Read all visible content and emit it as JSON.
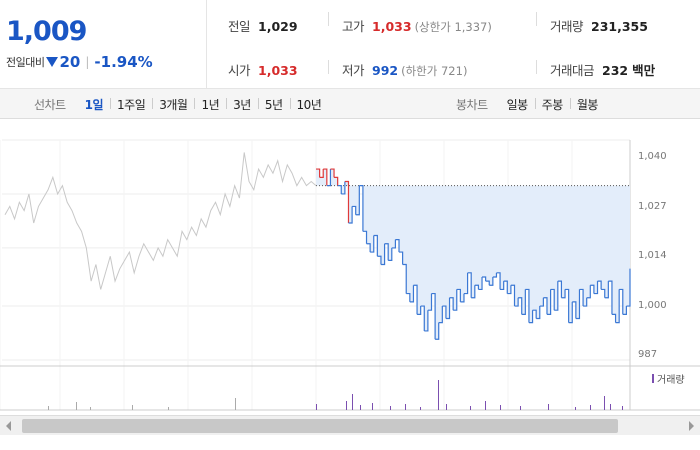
{
  "current": {
    "price": "1,009",
    "change_label": "전일대비",
    "change_value": "20",
    "change_percent": "-1.94%"
  },
  "stats": {
    "prev_close": {
      "label": "전일",
      "value": "1,029"
    },
    "high": {
      "label": "고가",
      "value": "1,033",
      "limit": "(상한가 1,337)"
    },
    "volume": {
      "label": "거래량",
      "value": "231,355"
    },
    "open": {
      "label": "시가",
      "value": "1,033"
    },
    "low": {
      "label": "저가",
      "value": "992",
      "limit": "(하한가 721)"
    },
    "amount": {
      "label": "거래대금",
      "value": "232",
      "unit": "백만"
    }
  },
  "tabs": {
    "line_label": "선차트",
    "line_periods": [
      "1일",
      "1주일",
      "3개월",
      "1년",
      "3년",
      "5년",
      "10년"
    ],
    "line_active": 0,
    "candle_label": "봉차트",
    "candle_periods": [
      "일봉",
      "주봉",
      "월봉"
    ]
  },
  "chart_data": {
    "type": "line",
    "y_ticks": [
      "1,040",
      "1,027",
      "1,014",
      "1,000",
      "987"
    ],
    "ylim": [
      987,
      1040
    ],
    "prev_close": 1029,
    "volume_legend": "거래량",
    "colors": {
      "prev_day": "#c8c8c8",
      "today_up": "#e03a3a",
      "today_down": "#3b78d4",
      "fill": "#e3edfa",
      "volume": "#7b4fb0"
    },
    "prev_day_series": [
      1022,
      1024,
      1021,
      1025,
      1023,
      1027,
      1020,
      1024,
      1026,
      1028,
      1031,
      1027,
      1029,
      1025,
      1023,
      1020,
      1018,
      1014,
      1006,
      1010,
      1004,
      1008,
      1012,
      1006,
      1009,
      1011,
      1013,
      1008,
      1012,
      1015,
      1013,
      1011,
      1014,
      1012,
      1016,
      1014,
      1012,
      1018,
      1016,
      1019,
      1017,
      1021,
      1019,
      1023,
      1025,
      1022,
      1027,
      1024,
      1029,
      1026,
      1037,
      1030,
      1028,
      1033,
      1031,
      1034,
      1032,
      1035,
      1030,
      1034,
      1032,
      1029,
      1031,
      1029,
      1030,
      1029
    ],
    "today_series": [
      1033,
      1031,
      1033,
      1029,
      1033,
      1031,
      1029,
      1027,
      1030,
      1020,
      1024,
      1022,
      1029,
      1018,
      1015,
      1013,
      1017,
      1012,
      1010,
      1015,
      1011,
      1014,
      1016,
      1013,
      1010,
      1003,
      1001,
      1005,
      998,
      1000,
      994,
      999,
      1003,
      992,
      996,
      1000,
      997,
      1002,
      999,
      1004,
      1001,
      1003,
      1008,
      1002,
      1005,
      1004,
      1007,
      1006,
      1005,
      1007,
      1008,
      1004,
      1006,
      1003,
      1005,
      1000,
      1002,
      998,
      1004,
      996,
      999,
      997,
      1000,
      1002,
      998,
      1004,
      999,
      1006,
      1002,
      1004,
      996,
      1001,
      997,
      1004,
      1000,
      1002,
      1005,
      1003,
      1006,
      1004,
      1002,
      1006,
      998,
      996,
      1004,
      998,
      1000,
      1009
    ]
  }
}
